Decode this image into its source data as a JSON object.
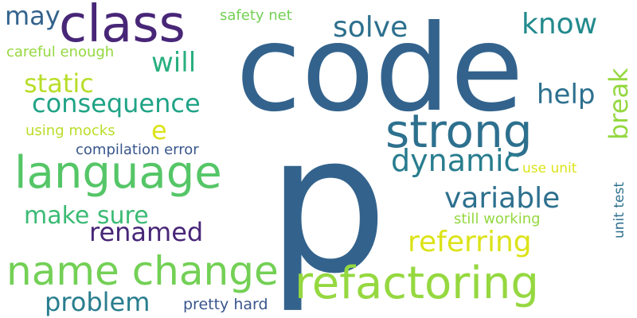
{
  "words": [
    {
      "text": "code",
      "color": "#33638d"
    },
    {
      "text": "p",
      "color": "#33638d"
    },
    {
      "text": "class",
      "color": "#482677"
    },
    {
      "text": "strong",
      "color": "#2d708e"
    },
    {
      "text": "language",
      "color": "#55c667"
    },
    {
      "text": "refactoring",
      "color": "#95d840"
    },
    {
      "text": "name change",
      "color": "#73d055"
    },
    {
      "text": "dynamic",
      "color": "#287d8e"
    },
    {
      "text": "variable",
      "color": "#2d708e"
    },
    {
      "text": "referring",
      "color": "#dce319"
    },
    {
      "text": "consequence",
      "color": "#20a386"
    },
    {
      "text": "solve",
      "color": "#2d708e"
    },
    {
      "text": "know",
      "color": "#238a8d"
    },
    {
      "text": "will",
      "color": "#29af7f"
    },
    {
      "text": "static",
      "color": "#b8de29"
    },
    {
      "text": "may",
      "color": "#33638d"
    },
    {
      "text": "e",
      "color": "#dce319"
    },
    {
      "text": "help",
      "color": "#2d708e"
    },
    {
      "text": "break",
      "color": "#95d840"
    },
    {
      "text": "make sure",
      "color": "#3cbb75"
    },
    {
      "text": "renamed",
      "color": "#482677"
    },
    {
      "text": "problem",
      "color": "#287d8e"
    },
    {
      "text": "safety net",
      "color": "#73d055"
    },
    {
      "text": "careful enough",
      "color": "#95d840"
    },
    {
      "text": "using mocks",
      "color": "#b8de29"
    },
    {
      "text": "compilation error",
      "color": "#39568c"
    },
    {
      "text": "use unit",
      "color": "#dce319"
    },
    {
      "text": "unit test",
      "color": "#2d708e"
    },
    {
      "text": "still working",
      "color": "#95d840"
    },
    {
      "text": "pretty hard",
      "color": "#39568c"
    }
  ]
}
